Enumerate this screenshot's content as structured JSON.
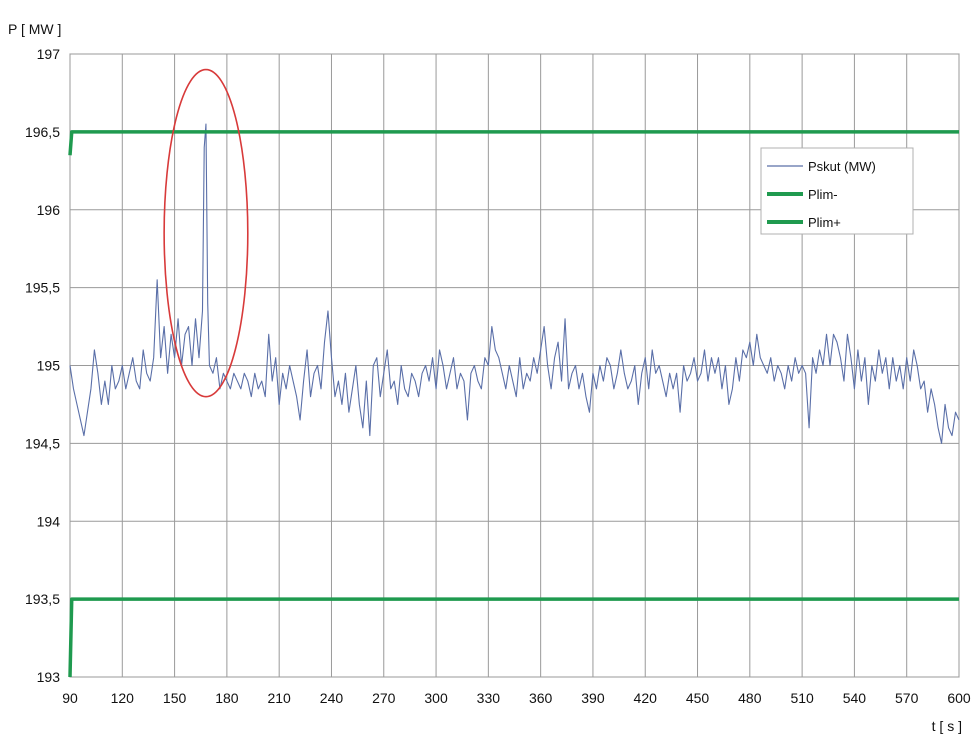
{
  "chart_data": {
    "type": "line",
    "xlabel": "t [ s ]",
    "ylabel": "P [ MW ]",
    "xlim": [
      90,
      600
    ],
    "ylim": [
      193,
      197
    ],
    "x_ticks": [
      "90",
      "120",
      "150",
      "180",
      "210",
      "240",
      "270",
      "300",
      "330",
      "360",
      "390",
      "420",
      "450",
      "480",
      "510",
      "540",
      "570",
      "600"
    ],
    "y_ticks": [
      "193",
      "193,5",
      "194",
      "194,5",
      "195",
      "195,5",
      "196",
      "196,5",
      "197"
    ],
    "grid": true,
    "legend_position": "top-right",
    "colors": {
      "pskut": "#5a6fa8",
      "limits": "#1f9a4f",
      "annotation": "#d83a3a",
      "grid": "#9a9a9a"
    },
    "series": [
      {
        "name": "Pskut (MW)",
        "points": [
          [
            90,
            195.0
          ],
          [
            92,
            194.85
          ],
          [
            94,
            194.75
          ],
          [
            96,
            194.65
          ],
          [
            98,
            194.55
          ],
          [
            100,
            194.7
          ],
          [
            102,
            194.85
          ],
          [
            104,
            195.1
          ],
          [
            106,
            194.95
          ],
          [
            108,
            194.75
          ],
          [
            110,
            194.9
          ],
          [
            112,
            194.75
          ],
          [
            114,
            195.0
          ],
          [
            116,
            194.85
          ],
          [
            118,
            194.9
          ],
          [
            120,
            195.0
          ],
          [
            122,
            194.85
          ],
          [
            124,
            194.95
          ],
          [
            126,
            195.05
          ],
          [
            128,
            194.9
          ],
          [
            130,
            194.85
          ],
          [
            132,
            195.1
          ],
          [
            134,
            194.95
          ],
          [
            136,
            194.9
          ],
          [
            138,
            195.05
          ],
          [
            140,
            195.55
          ],
          [
            142,
            195.05
          ],
          [
            144,
            195.25
          ],
          [
            146,
            194.95
          ],
          [
            148,
            195.2
          ],
          [
            150,
            195.05
          ],
          [
            152,
            195.3
          ],
          [
            154,
            195.0
          ],
          [
            156,
            195.2
          ],
          [
            158,
            195.25
          ],
          [
            160,
            195.0
          ],
          [
            162,
            195.3
          ],
          [
            164,
            195.05
          ],
          [
            166,
            195.35
          ],
          [
            167,
            196.4
          ],
          [
            168,
            196.55
          ],
          [
            169,
            195.4
          ],
          [
            170,
            195.0
          ],
          [
            172,
            194.95
          ],
          [
            174,
            195.05
          ],
          [
            176,
            194.85
          ],
          [
            178,
            194.95
          ],
          [
            180,
            194.9
          ],
          [
            182,
            194.85
          ],
          [
            184,
            194.95
          ],
          [
            186,
            194.9
          ],
          [
            188,
            194.85
          ],
          [
            190,
            194.95
          ],
          [
            192,
            194.9
          ],
          [
            194,
            194.8
          ],
          [
            196,
            194.95
          ],
          [
            198,
            194.85
          ],
          [
            200,
            194.9
          ],
          [
            202,
            194.8
          ],
          [
            204,
            195.2
          ],
          [
            206,
            194.9
          ],
          [
            208,
            195.05
          ],
          [
            210,
            194.75
          ],
          [
            212,
            194.95
          ],
          [
            214,
            194.85
          ],
          [
            216,
            195.0
          ],
          [
            218,
            194.9
          ],
          [
            220,
            194.8
          ],
          [
            222,
            194.65
          ],
          [
            224,
            194.9
          ],
          [
            226,
            195.1
          ],
          [
            228,
            194.8
          ],
          [
            230,
            194.95
          ],
          [
            232,
            195.0
          ],
          [
            234,
            194.85
          ],
          [
            236,
            195.15
          ],
          [
            238,
            195.35
          ],
          [
            240,
            195.05
          ],
          [
            242,
            194.8
          ],
          [
            244,
            194.9
          ],
          [
            246,
            194.75
          ],
          [
            248,
            194.95
          ],
          [
            250,
            194.7
          ],
          [
            252,
            194.85
          ],
          [
            254,
            195.0
          ],
          [
            256,
            194.75
          ],
          [
            258,
            194.6
          ],
          [
            260,
            194.9
          ],
          [
            262,
            194.55
          ],
          [
            264,
            195.0
          ],
          [
            266,
            195.05
          ],
          [
            268,
            194.8
          ],
          [
            270,
            194.95
          ],
          [
            272,
            195.1
          ],
          [
            274,
            194.85
          ],
          [
            276,
            194.9
          ],
          [
            278,
            194.75
          ],
          [
            280,
            195.0
          ],
          [
            282,
            194.85
          ],
          [
            284,
            194.8
          ],
          [
            286,
            194.95
          ],
          [
            288,
            194.9
          ],
          [
            290,
            194.8
          ],
          [
            292,
            194.95
          ],
          [
            294,
            195.0
          ],
          [
            296,
            194.9
          ],
          [
            298,
            195.05
          ],
          [
            300,
            194.85
          ],
          [
            302,
            195.1
          ],
          [
            304,
            195.0
          ],
          [
            306,
            194.85
          ],
          [
            308,
            194.95
          ],
          [
            310,
            195.05
          ],
          [
            312,
            194.85
          ],
          [
            314,
            194.95
          ],
          [
            316,
            194.9
          ],
          [
            318,
            194.65
          ],
          [
            320,
            194.95
          ],
          [
            322,
            195.0
          ],
          [
            324,
            194.9
          ],
          [
            326,
            194.85
          ],
          [
            328,
            195.05
          ],
          [
            330,
            195.0
          ],
          [
            332,
            195.25
          ],
          [
            334,
            195.1
          ],
          [
            336,
            195.05
          ],
          [
            338,
            194.95
          ],
          [
            340,
            194.85
          ],
          [
            342,
            195.0
          ],
          [
            344,
            194.9
          ],
          [
            346,
            194.8
          ],
          [
            348,
            195.05
          ],
          [
            350,
            194.85
          ],
          [
            352,
            194.95
          ],
          [
            354,
            194.9
          ],
          [
            356,
            195.05
          ],
          [
            358,
            194.95
          ],
          [
            360,
            195.1
          ],
          [
            362,
            195.25
          ],
          [
            364,
            195.0
          ],
          [
            366,
            194.85
          ],
          [
            368,
            195.05
          ],
          [
            370,
            195.15
          ],
          [
            372,
            194.9
          ],
          [
            374,
            195.3
          ],
          [
            376,
            194.85
          ],
          [
            378,
            194.95
          ],
          [
            380,
            195.0
          ],
          [
            382,
            194.85
          ],
          [
            384,
            194.95
          ],
          [
            386,
            194.8
          ],
          [
            388,
            194.7
          ],
          [
            390,
            194.95
          ],
          [
            392,
            194.85
          ],
          [
            394,
            195.0
          ],
          [
            396,
            194.9
          ],
          [
            398,
            195.05
          ],
          [
            400,
            195.0
          ],
          [
            402,
            194.85
          ],
          [
            404,
            194.95
          ],
          [
            406,
            195.1
          ],
          [
            408,
            194.95
          ],
          [
            410,
            194.85
          ],
          [
            412,
            194.9
          ],
          [
            414,
            195.0
          ],
          [
            416,
            194.75
          ],
          [
            418,
            194.95
          ],
          [
            420,
            195.05
          ],
          [
            422,
            194.85
          ],
          [
            424,
            195.1
          ],
          [
            426,
            194.95
          ],
          [
            428,
            195.0
          ],
          [
            430,
            194.9
          ],
          [
            432,
            194.8
          ],
          [
            434,
            194.95
          ],
          [
            436,
            194.85
          ],
          [
            438,
            194.95
          ],
          [
            440,
            194.7
          ],
          [
            442,
            195.0
          ],
          [
            444,
            194.9
          ],
          [
            446,
            194.95
          ],
          [
            448,
            195.05
          ],
          [
            450,
            194.9
          ],
          [
            452,
            194.95
          ],
          [
            454,
            195.1
          ],
          [
            456,
            194.9
          ],
          [
            458,
            195.05
          ],
          [
            460,
            194.95
          ],
          [
            462,
            195.05
          ],
          [
            464,
            194.85
          ],
          [
            466,
            195.0
          ],
          [
            468,
            194.75
          ],
          [
            470,
            194.85
          ],
          [
            472,
            195.05
          ],
          [
            474,
            194.9
          ],
          [
            476,
            195.1
          ],
          [
            478,
            195.05
          ],
          [
            480,
            195.15
          ],
          [
            482,
            195.0
          ],
          [
            484,
            195.2
          ],
          [
            486,
            195.05
          ],
          [
            488,
            195.0
          ],
          [
            490,
            194.95
          ],
          [
            492,
            195.05
          ],
          [
            494,
            194.9
          ],
          [
            496,
            195.0
          ],
          [
            498,
            194.95
          ],
          [
            500,
            194.85
          ],
          [
            502,
            195.0
          ],
          [
            504,
            194.9
          ],
          [
            506,
            195.05
          ],
          [
            508,
            194.95
          ],
          [
            510,
            195.0
          ],
          [
            512,
            194.95
          ],
          [
            514,
            194.6
          ],
          [
            516,
            195.05
          ],
          [
            518,
            194.95
          ],
          [
            520,
            195.1
          ],
          [
            522,
            195.0
          ],
          [
            524,
            195.2
          ],
          [
            526,
            195.0
          ],
          [
            528,
            195.2
          ],
          [
            530,
            195.15
          ],
          [
            532,
            195.05
          ],
          [
            534,
            194.9
          ],
          [
            536,
            195.2
          ],
          [
            538,
            195.05
          ],
          [
            540,
            194.85
          ],
          [
            542,
            195.1
          ],
          [
            544,
            194.9
          ],
          [
            546,
            195.05
          ],
          [
            548,
            194.75
          ],
          [
            550,
            195.0
          ],
          [
            552,
            194.9
          ],
          [
            554,
            195.1
          ],
          [
            556,
            194.95
          ],
          [
            558,
            195.05
          ],
          [
            560,
            194.85
          ],
          [
            562,
            195.05
          ],
          [
            564,
            194.9
          ],
          [
            566,
            195.0
          ],
          [
            568,
            194.85
          ],
          [
            570,
            195.05
          ],
          [
            572,
            194.9
          ],
          [
            574,
            195.1
          ],
          [
            576,
            195.0
          ],
          [
            578,
            194.85
          ],
          [
            580,
            194.9
          ],
          [
            582,
            194.7
          ],
          [
            584,
            194.85
          ],
          [
            586,
            194.75
          ],
          [
            588,
            194.6
          ],
          [
            590,
            194.5
          ],
          [
            592,
            194.75
          ],
          [
            594,
            194.6
          ],
          [
            596,
            194.55
          ],
          [
            598,
            194.7
          ],
          [
            600,
            194.65
          ]
        ]
      },
      {
        "name": "Plim-",
        "points": [
          [
            90,
            193.0
          ],
          [
            91,
            193.5
          ],
          [
            600,
            193.5
          ]
        ]
      },
      {
        "name": "Plim+",
        "points": [
          [
            90,
            196.35
          ],
          [
            91,
            196.5
          ],
          [
            600,
            196.5
          ]
        ]
      }
    ],
    "annotation": {
      "shape": "ellipse",
      "center": [
        168,
        195.85
      ],
      "rx_s": 24,
      "ry_mw": 1.05
    }
  }
}
